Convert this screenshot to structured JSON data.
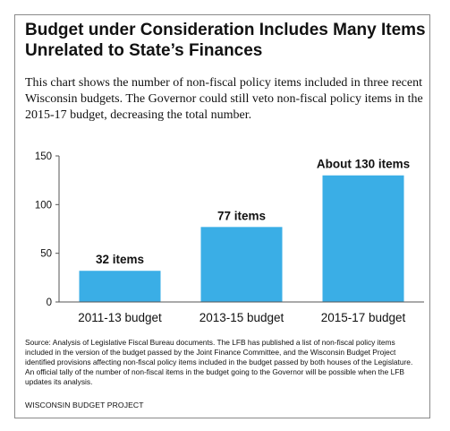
{
  "header": {
    "title": "Budget under Consideration Includes Many Items Unrelated to State’s Finances",
    "subtitle": "This chart shows the number of non-fiscal policy items included in three recent Wisconsin budgets. The Governor could still veto non-fiscal policy items in the 2015-17 budget, decreasing the total number."
  },
  "chart_data": {
    "type": "bar",
    "categories": [
      "2011-13 budget",
      "2013-15 budget",
      "2015-17 budget"
    ],
    "values": [
      32,
      77,
      130
    ],
    "data_labels": [
      "32 items",
      "77 items",
      "About 130 items"
    ],
    "ylim": [
      0,
      150
    ],
    "yticks": [
      0,
      50,
      100,
      150
    ],
    "ytick_labels": [
      "0",
      "50",
      "100",
      "150"
    ],
    "xlabel": "",
    "ylabel": "",
    "grid": false,
    "bar_color": "#3aaee6"
  },
  "footer": {
    "source": "Source: Analysis of Legislative Fiscal Bureau documents. The LFB has published a list of non-fiscal policy items included in the version of the budget passed by the Joint Finance Committee, and the Wisconsin Budget Project identified provisions affecting non-fiscal policy items included in the budget passed by both houses of the Legislature. An official tally of the number of non-fiscal items in the budget going to the Governor will be possible when the LFB updates its analysis.",
    "organization": "WISCONSIN BUDGET PROJECT"
  }
}
